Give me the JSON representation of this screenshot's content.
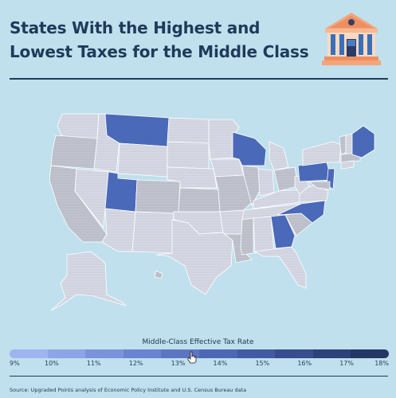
{
  "title": {
    "line1": "States With the Highest and",
    "line2": "Lowest Taxes for the Middle Class"
  },
  "icons": {
    "logo": "bank-building-icon",
    "cursor": "hand-pointer-icon"
  },
  "legend": {
    "title": "Middle-Class Effective Tax Rate",
    "ticks": [
      "9%",
      "10%",
      "11%",
      "12%",
      "13%",
      "14%",
      "15%",
      "16%",
      "17%",
      "18%"
    ],
    "colors": [
      "#9fb4ef",
      "#8da4e6",
      "#7b93db",
      "#6a84d1",
      "#5c76c4",
      "#4e67b4",
      "#425aa2",
      "#374d8e",
      "#2d417a",
      "#243666"
    ]
  },
  "source": "Source: Upgraded Points analysis of Economic Policy Institute and U.S. Census Bureau data",
  "colors": {
    "background": "#bfe0ec",
    "title": "#1f3a5a",
    "highlighted_state": "#4a69b8",
    "neutral_state": "#d6d9e4",
    "neutral_state_alt": "#c4c7d1"
  },
  "map_data": {
    "highlighted_states": [
      "MT",
      "WI",
      "UT",
      "PA",
      "NC",
      "GA",
      "ME"
    ]
  }
}
